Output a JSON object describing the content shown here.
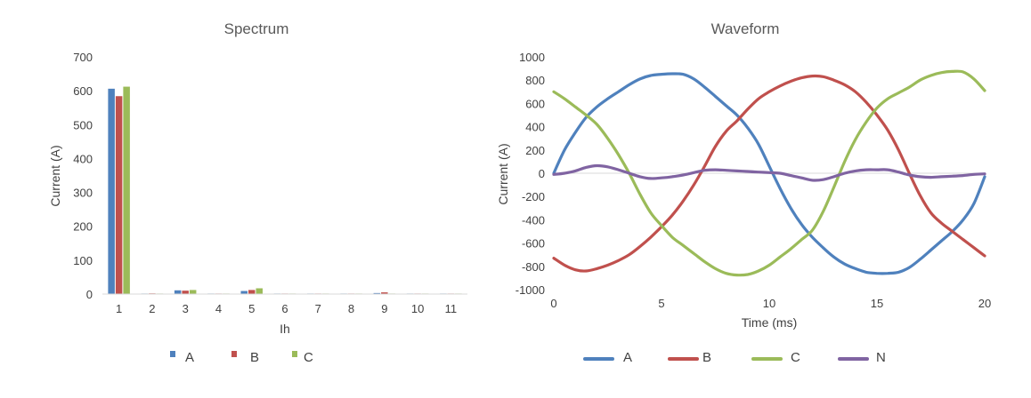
{
  "chart_data": [
    {
      "type": "bar",
      "title": "Spectrum",
      "xlabel": "Ih",
      "ylabel": "Current (A)",
      "ylim": [
        0,
        700
      ],
      "yticks": [
        0,
        100,
        200,
        300,
        400,
        500,
        600,
        700
      ],
      "categories": [
        "1",
        "2",
        "3",
        "4",
        "5",
        "6",
        "7",
        "8",
        "9",
        "10",
        "11"
      ],
      "series": [
        {
          "name": "A",
          "color": "#4f81bd",
          "values": [
            606,
            1,
            11,
            1,
            9,
            0,
            1,
            0,
            3,
            0,
            1
          ]
        },
        {
          "name": "B",
          "color": "#c0504d",
          "values": [
            584,
            2,
            10,
            1,
            12,
            0,
            1,
            0,
            5,
            0,
            1
          ]
        },
        {
          "name": "C",
          "color": "#9bbb59",
          "values": [
            612,
            1,
            12,
            1,
            17,
            0,
            1,
            0,
            1,
            0,
            1
          ]
        }
      ],
      "legend": "bottom"
    },
    {
      "type": "line",
      "title": "Waveform",
      "xlabel": "Time (ms)",
      "ylabel": "Current (A)",
      "xlim": [
        0,
        20
      ],
      "ylim": [
        -1000,
        1000
      ],
      "xticks": [
        0,
        5,
        10,
        15,
        20
      ],
      "yticks": [
        -1000,
        -800,
        -600,
        -400,
        -200,
        0,
        200,
        400,
        600,
        800,
        1000
      ],
      "series": [
        {
          "name": "A",
          "color": "#4f81bd",
          "points": [
            [
              0,
              0
            ],
            [
              0.5,
              200
            ],
            [
              1.0,
              350
            ],
            [
              1.5,
              480
            ],
            [
              2.0,
              570
            ],
            [
              2.5,
              640
            ],
            [
              3.0,
              700
            ],
            [
              3.5,
              760
            ],
            [
              4.0,
              810
            ],
            [
              4.5,
              840
            ],
            [
              5.0,
              850
            ],
            [
              5.5,
              855
            ],
            [
              6.0,
              850
            ],
            [
              6.5,
              810
            ],
            [
              7.0,
              740
            ],
            [
              7.5,
              660
            ],
            [
              8.0,
              580
            ],
            [
              8.5,
              500
            ],
            [
              9.0,
              390
            ],
            [
              9.5,
              250
            ],
            [
              10.0,
              60
            ],
            [
              10.5,
              -130
            ],
            [
              11.0,
              -300
            ],
            [
              11.5,
              -440
            ],
            [
              12.0,
              -550
            ],
            [
              12.5,
              -640
            ],
            [
              13.0,
              -720
            ],
            [
              13.5,
              -780
            ],
            [
              14.0,
              -820
            ],
            [
              14.5,
              -850
            ],
            [
              15.0,
              -860
            ],
            [
              15.5,
              -860
            ],
            [
              16.0,
              -850
            ],
            [
              16.5,
              -810
            ],
            [
              17.0,
              -740
            ],
            [
              17.5,
              -660
            ],
            [
              18.0,
              -580
            ],
            [
              18.5,
              -500
            ],
            [
              19.0,
              -400
            ],
            [
              19.5,
              -260
            ],
            [
              20.0,
              -30
            ]
          ]
        },
        {
          "name": "B",
          "color": "#c0504d",
          "points": [
            [
              0,
              -730
            ],
            [
              0.5,
              -790
            ],
            [
              1.0,
              -830
            ],
            [
              1.5,
              -840
            ],
            [
              2.0,
              -820
            ],
            [
              2.5,
              -790
            ],
            [
              3.0,
              -750
            ],
            [
              3.5,
              -700
            ],
            [
              4.0,
              -630
            ],
            [
              4.5,
              -550
            ],
            [
              5.0,
              -460
            ],
            [
              5.5,
              -360
            ],
            [
              6.0,
              -240
            ],
            [
              6.5,
              -100
            ],
            [
              7.0,
              60
            ],
            [
              7.5,
              230
            ],
            [
              8.0,
              360
            ],
            [
              8.5,
              450
            ],
            [
              9.0,
              550
            ],
            [
              9.5,
              640
            ],
            [
              10.0,
              700
            ],
            [
              10.5,
              750
            ],
            [
              11.0,
              790
            ],
            [
              11.5,
              820
            ],
            [
              12.0,
              835
            ],
            [
              12.5,
              830
            ],
            [
              13.0,
              800
            ],
            [
              13.5,
              760
            ],
            [
              14.0,
              700
            ],
            [
              14.5,
              610
            ],
            [
              15.0,
              500
            ],
            [
              15.5,
              370
            ],
            [
              16.0,
              200
            ],
            [
              16.5,
              0
            ],
            [
              17.0,
              -190
            ],
            [
              17.5,
              -340
            ],
            [
              18.0,
              -430
            ],
            [
              18.5,
              -500
            ],
            [
              19.0,
              -570
            ],
            [
              19.5,
              -640
            ],
            [
              20.0,
              -710
            ]
          ]
        },
        {
          "name": "C",
          "color": "#9bbb59",
          "points": [
            [
              0,
              700
            ],
            [
              0.5,
              640
            ],
            [
              1.0,
              570
            ],
            [
              1.5,
              500
            ],
            [
              2.0,
              420
            ],
            [
              2.5,
              300
            ],
            [
              3.0,
              160
            ],
            [
              3.5,
              0
            ],
            [
              4.0,
              -180
            ],
            [
              4.5,
              -340
            ],
            [
              5.0,
              -450
            ],
            [
              5.5,
              -550
            ],
            [
              6.0,
              -620
            ],
            [
              6.5,
              -690
            ],
            [
              7.0,
              -760
            ],
            [
              7.5,
              -820
            ],
            [
              8.0,
              -860
            ],
            [
              8.5,
              -875
            ],
            [
              9.0,
              -870
            ],
            [
              9.5,
              -840
            ],
            [
              10.0,
              -790
            ],
            [
              10.5,
              -720
            ],
            [
              11.0,
              -650
            ],
            [
              11.5,
              -570
            ],
            [
              12.0,
              -490
            ],
            [
              12.5,
              -330
            ],
            [
              13.0,
              -120
            ],
            [
              13.5,
              100
            ],
            [
              14.0,
              290
            ],
            [
              14.5,
              440
            ],
            [
              15.0,
              560
            ],
            [
              15.5,
              640
            ],
            [
              16.0,
              690
            ],
            [
              16.5,
              740
            ],
            [
              17.0,
              800
            ],
            [
              17.5,
              840
            ],
            [
              18.0,
              865
            ],
            [
              18.5,
              875
            ],
            [
              19.0,
              870
            ],
            [
              19.5,
              810
            ],
            [
              20.0,
              710
            ]
          ]
        },
        {
          "name": "N",
          "color": "#8064a2",
          "points": [
            [
              0,
              -10
            ],
            [
              0.5,
              0
            ],
            [
              1.0,
              20
            ],
            [
              1.5,
              50
            ],
            [
              2.0,
              65
            ],
            [
              2.5,
              55
            ],
            [
              3.0,
              30
            ],
            [
              3.5,
              0
            ],
            [
              4.0,
              -30
            ],
            [
              4.5,
              -45
            ],
            [
              5.0,
              -40
            ],
            [
              5.5,
              -30
            ],
            [
              6.0,
              -15
            ],
            [
              6.5,
              5
            ],
            [
              7.0,
              25
            ],
            [
              7.5,
              30
            ],
            [
              8.0,
              25
            ],
            [
              8.5,
              20
            ],
            [
              9.0,
              15
            ],
            [
              9.5,
              10
            ],
            [
              10.0,
              5
            ],
            [
              10.5,
              0
            ],
            [
              11.0,
              -20
            ],
            [
              11.5,
              -40
            ],
            [
              12.0,
              -60
            ],
            [
              12.5,
              -55
            ],
            [
              13.0,
              -30
            ],
            [
              13.5,
              0
            ],
            [
              14.0,
              20
            ],
            [
              14.5,
              30
            ],
            [
              15.0,
              30
            ],
            [
              15.5,
              30
            ],
            [
              16.0,
              10
            ],
            [
              16.5,
              -15
            ],
            [
              17.0,
              -30
            ],
            [
              17.5,
              -35
            ],
            [
              18.0,
              -30
            ],
            [
              18.5,
              -25
            ],
            [
              19.0,
              -20
            ],
            [
              19.5,
              -10
            ],
            [
              20.0,
              -5
            ]
          ]
        }
      ],
      "legend": "bottom"
    }
  ]
}
